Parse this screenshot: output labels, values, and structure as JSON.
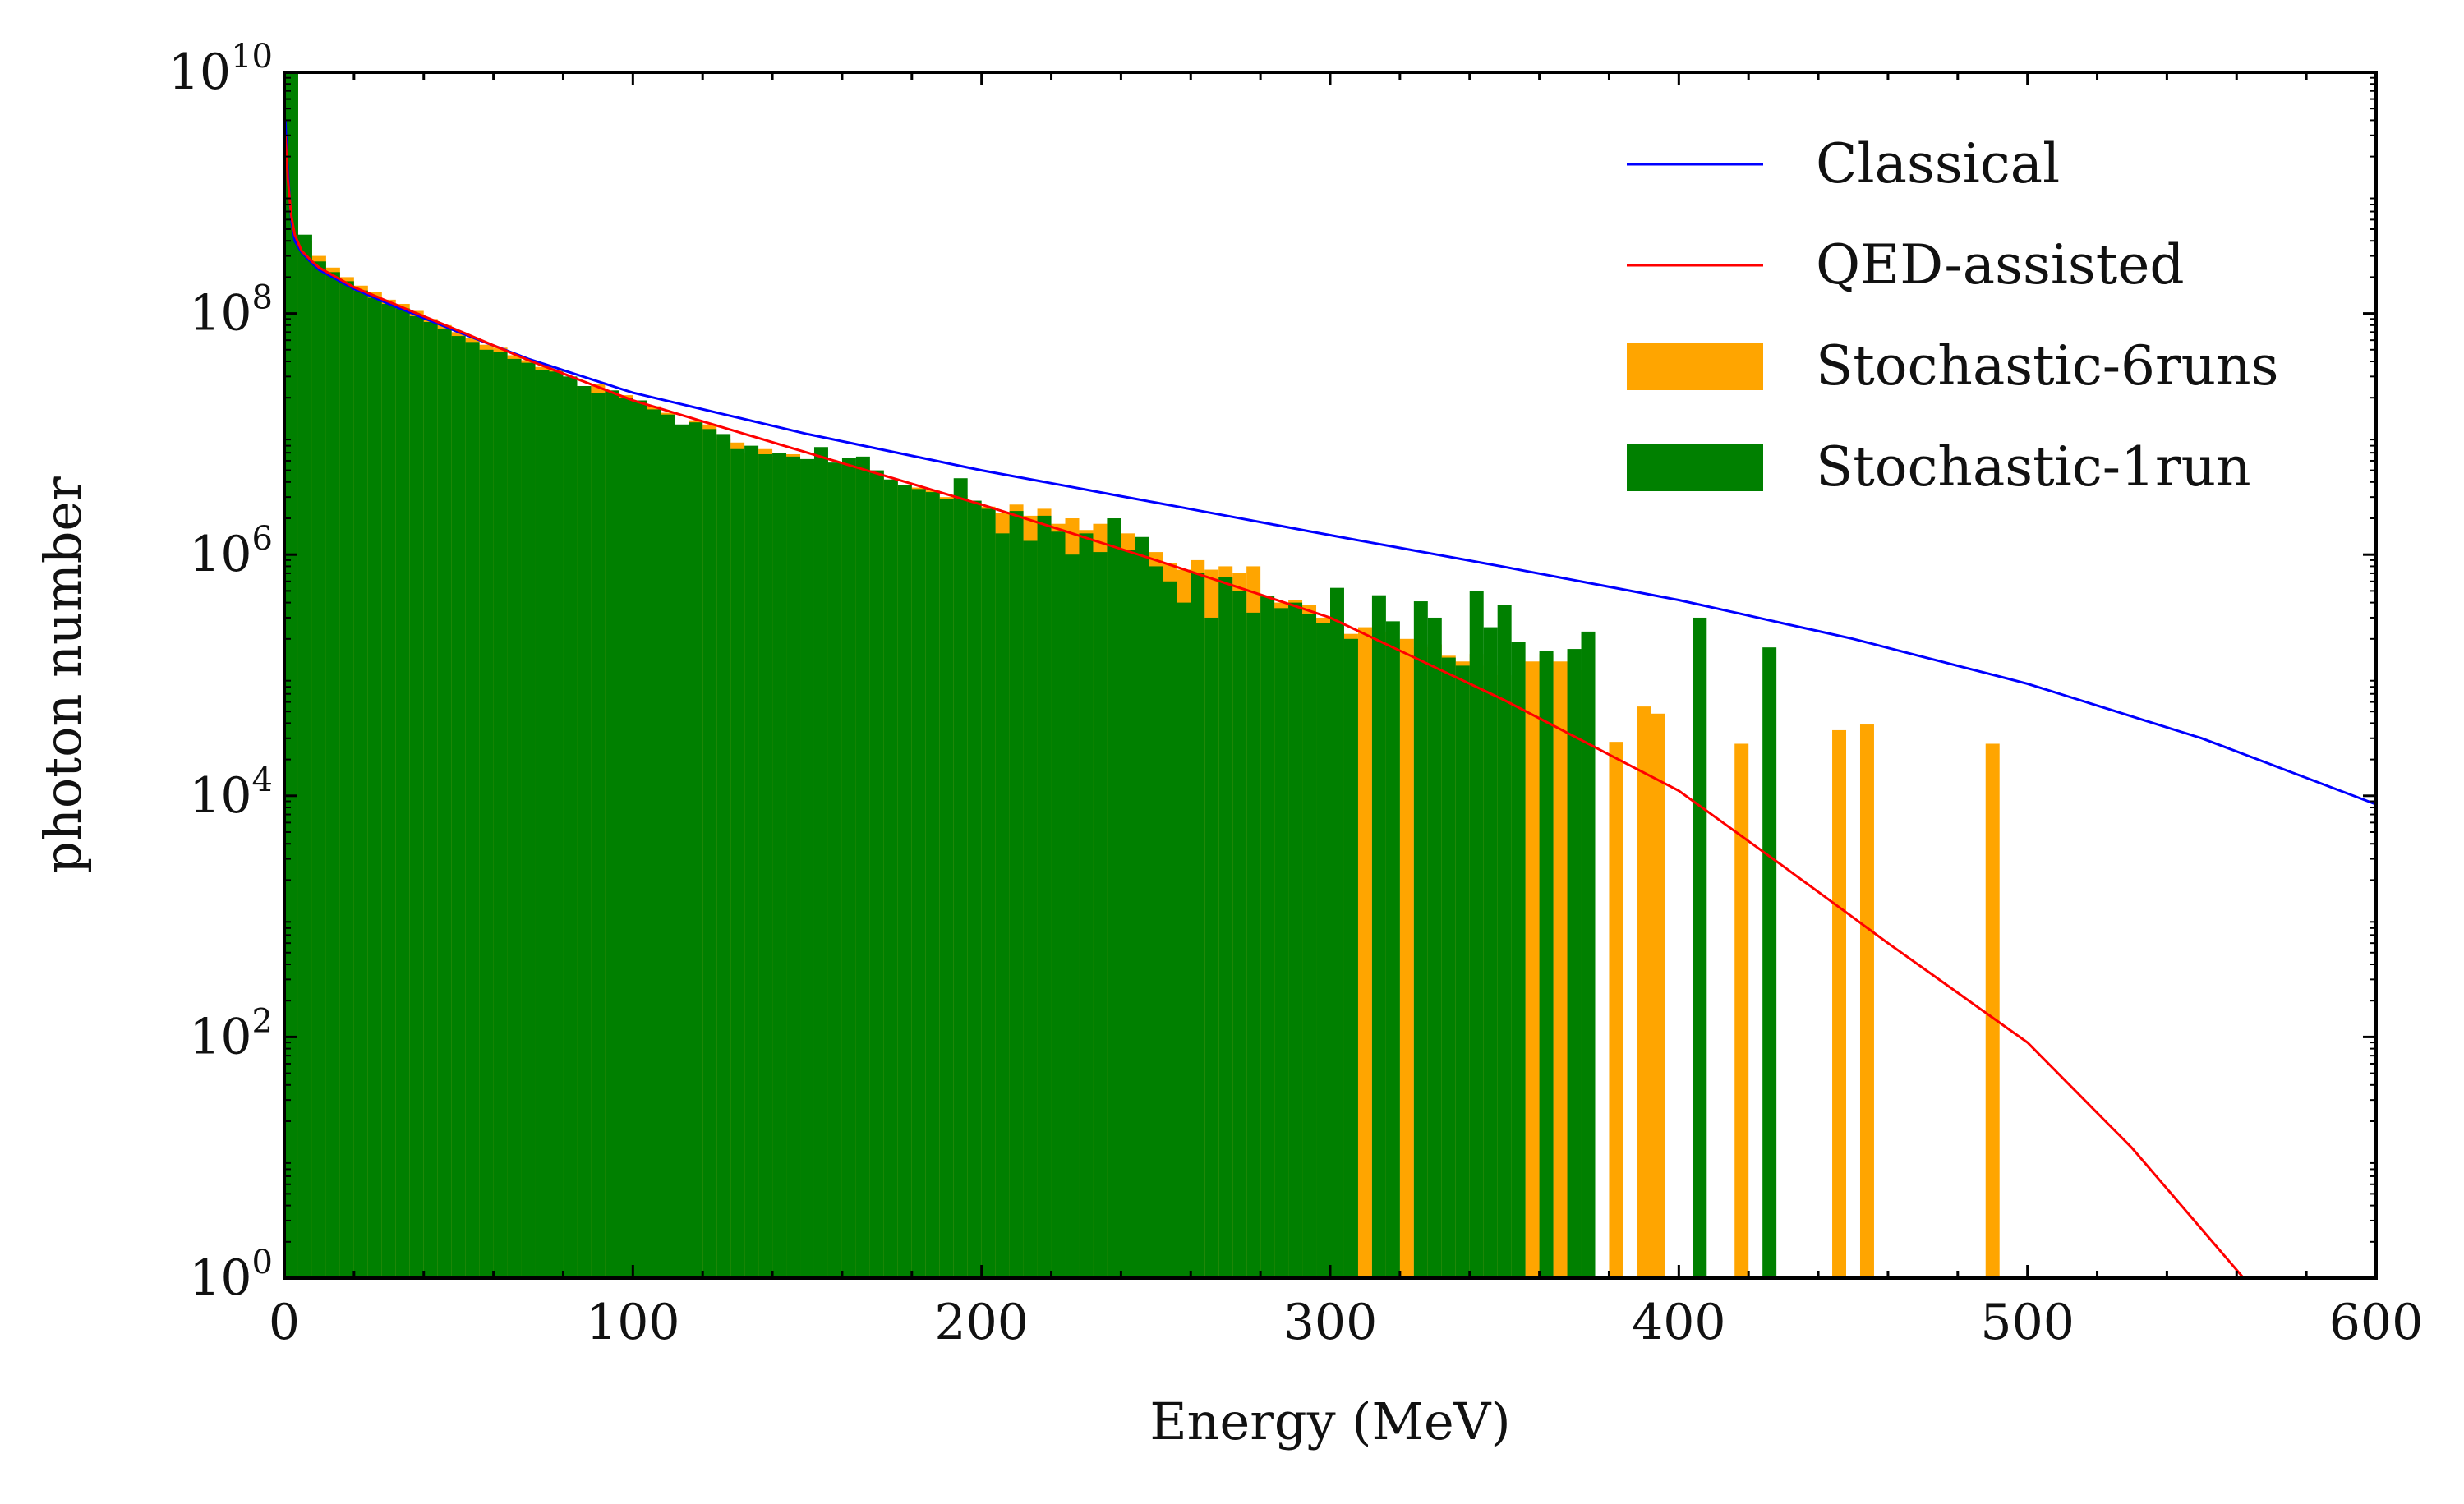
{
  "chart_data": {
    "type": "bar",
    "xlabel": "Energy (MeV)",
    "ylabel": "photon number",
    "xlim": [
      0,
      600
    ],
    "ylim": [
      1,
      10000000000
    ],
    "yscale": "log",
    "legend_position": "top-right",
    "x_ticks": [
      0,
      100,
      200,
      300,
      400,
      500,
      600
    ],
    "x_tick_labels": [
      "0",
      "100",
      "200",
      "300",
      "400",
      "500",
      "600"
    ],
    "y_ticks": [
      {
        "value": 1,
        "base": "10",
        "exp": "0"
      },
      {
        "value": 100,
        "base": "10",
        "exp": "2"
      },
      {
        "value": 10000,
        "base": "10",
        "exp": "4"
      },
      {
        "value": 1000000,
        "base": "10",
        "exp": "6"
      },
      {
        "value": 100000000,
        "base": "10",
        "exp": "8"
      },
      {
        "value": 10000000000,
        "base": "10",
        "exp": "10"
      }
    ],
    "bin_width": 4,
    "series": [
      {
        "name": "Classical",
        "kind": "line",
        "color": "#0000ff",
        "points": [
          [
            0.3,
            4000000000.0
          ],
          [
            1,
            1500000000.0
          ],
          [
            2,
            600000000.0
          ],
          [
            3,
            400000000.0
          ],
          [
            5,
            320000000.0
          ],
          [
            8,
            260000000.0
          ],
          [
            10,
            230000000.0
          ],
          [
            20,
            160000000.0
          ],
          [
            30,
            120000000.0
          ],
          [
            50,
            70000000.0
          ],
          [
            70,
            42000000.0
          ],
          [
            100,
            22000000.0
          ],
          [
            150,
            10000000.0
          ],
          [
            200,
            5000000.0
          ],
          [
            250,
            2700000.0
          ],
          [
            300,
            1450000.0
          ],
          [
            350,
            790000.0
          ],
          [
            400,
            420000.0
          ],
          [
            450,
            200000.0
          ],
          [
            500,
            85000.0
          ],
          [
            550,
            30000.0
          ],
          [
            600,
            8500.0
          ]
        ]
      },
      {
        "name": "QED-assisted",
        "kind": "line",
        "color": "#ff0000",
        "points": [
          [
            0.3,
            3000000000.0
          ],
          [
            1,
            1300000000.0
          ],
          [
            2,
            650000000.0
          ],
          [
            3,
            450000000.0
          ],
          [
            5,
            330000000.0
          ],
          [
            8,
            270000000.0
          ],
          [
            10,
            240000000.0
          ],
          [
            20,
            165000000.0
          ],
          [
            30,
            125000000.0
          ],
          [
            50,
            72000000.0
          ],
          [
            70,
            41000000.0
          ],
          [
            100,
            19000000.0
          ],
          [
            150,
            7000000.0
          ],
          [
            200,
            2600000.0
          ],
          [
            250,
            900000.0
          ],
          [
            300,
            300000.0
          ],
          [
            350,
            62000.0
          ],
          [
            400,
            11000.0
          ],
          [
            430,
            2600.0
          ],
          [
            460,
            600.0
          ],
          [
            500,
            90.0
          ],
          [
            530,
            12.0
          ],
          [
            562,
            1
          ]
        ]
      },
      {
        "name": "Stochastic-6runs",
        "kind": "bars",
        "color": "#ffa500",
        "points": [
          [
            0,
            10000000000.0
          ],
          [
            4,
            400000000.0
          ],
          [
            8,
            300000000.0
          ],
          [
            12,
            240000000.0
          ],
          [
            16,
            200000000.0
          ],
          [
            20,
            170000000.0
          ],
          [
            24,
            150000000.0
          ],
          [
            28,
            130000000.0
          ],
          [
            32,
            120000000.0
          ],
          [
            36,
            105000000.0
          ],
          [
            40,
            90000000.0
          ],
          [
            44,
            80000000.0
          ],
          [
            48,
            70000000.0
          ],
          [
            52,
            63000000.0
          ],
          [
            56,
            55000000.0
          ],
          [
            60,
            52000000.0
          ],
          [
            64,
            45000000.0
          ],
          [
            68,
            41000000.0
          ],
          [
            72,
            36000000.0
          ],
          [
            76,
            34000000.0
          ],
          [
            80,
            27000000.0
          ],
          [
            84,
            24000000.0
          ],
          [
            88,
            26000000.0
          ],
          [
            92,
            22000000.0
          ],
          [
            96,
            21000000.0
          ],
          [
            100,
            18000000.0
          ],
          [
            104,
            17000000.0
          ],
          [
            108,
            15000000.0
          ],
          [
            112,
            11000000.0
          ],
          [
            116,
            13000000.0
          ],
          [
            120,
            12000000.0
          ],
          [
            124,
            9000000.0
          ],
          [
            128,
            8500000.0
          ],
          [
            132,
            7000000.0
          ],
          [
            136,
            7500000.0
          ],
          [
            140,
            6500000.0
          ],
          [
            144,
            6800000.0
          ],
          [
            148,
            5800000.0
          ],
          [
            152,
            6200000.0
          ],
          [
            156,
            5200000.0
          ],
          [
            160,
            5500000.0
          ],
          [
            164,
            4600000.0
          ],
          [
            168,
            4300000.0
          ],
          [
            172,
            4000000.0
          ],
          [
            176,
            3800000.0
          ],
          [
            180,
            3600000.0
          ],
          [
            184,
            3400000.0
          ],
          [
            188,
            3000000.0
          ],
          [
            192,
            3100000.0
          ],
          [
            196,
            2700000.0
          ],
          [
            200,
            2500000.0
          ],
          [
            204,
            2200000.0
          ],
          [
            208,
            2600000.0
          ],
          [
            212,
            2100000.0
          ],
          [
            216,
            2400000.0
          ],
          [
            220,
            1800000.0
          ],
          [
            224,
            2000000.0
          ],
          [
            228,
            1600000.0
          ],
          [
            232,
            1800000.0
          ],
          [
            236,
            1400000.0
          ],
          [
            240,
            1500000.0
          ],
          [
            244,
            1200000.0
          ],
          [
            248,
            1050000.0
          ],
          [
            252,
            850000.0
          ],
          [
            256,
            750000.0
          ],
          [
            260,
            900000.0
          ],
          [
            264,
            750000.0
          ],
          [
            268,
            800000.0
          ],
          [
            272,
            700000.0
          ],
          [
            276,
            800000.0
          ],
          [
            280,
            450000.0
          ],
          [
            284,
            400000.0
          ],
          [
            288,
            420000.0
          ],
          [
            292,
            380000.0
          ],
          [
            296,
            300000.0
          ],
          [
            300,
            250000.0
          ],
          [
            304,
            220000.0
          ],
          [
            308,
            250000.0
          ],
          [
            312,
            230000.0
          ],
          [
            316,
            190000.0
          ],
          [
            320,
            200000.0
          ],
          [
            324,
            170000.0
          ],
          [
            328,
            180000.0
          ],
          [
            332,
            145000.0
          ],
          [
            336,
            130000.0
          ],
          [
            340,
            150000.0
          ],
          [
            344,
            120000.0
          ],
          [
            348,
            100000.0
          ],
          [
            352,
            55000.0
          ],
          [
            356,
            130000.0
          ],
          [
            360,
            150000.0
          ],
          [
            364,
            130000.0
          ],
          [
            368,
            150000.0
          ],
          [
            372,
            110000.0
          ],
          [
            380,
            28000.0
          ],
          [
            388,
            55000.0
          ],
          [
            392,
            48000.0
          ],
          [
            416,
            27000.0
          ],
          [
            444,
            35000.0
          ],
          [
            452,
            39000.0
          ],
          [
            488,
            27000.0
          ]
        ]
      },
      {
        "name": "Stochastic-1run",
        "kind": "bars",
        "color": "#008000",
        "points": [
          [
            0,
            10000000000.0
          ],
          [
            4,
            450000000.0
          ],
          [
            8,
            270000000.0
          ],
          [
            12,
            220000000.0
          ],
          [
            16,
            185000000.0
          ],
          [
            20,
            155000000.0
          ],
          [
            24,
            135000000.0
          ],
          [
            28,
            120000000.0
          ],
          [
            32,
            110000000.0
          ],
          [
            36,
            95000000.0
          ],
          [
            40,
            85000000.0
          ],
          [
            44,
            75000000.0
          ],
          [
            48,
            65000000.0
          ],
          [
            52,
            58000000.0
          ],
          [
            56,
            50000000.0
          ],
          [
            60,
            48000000.0
          ],
          [
            64,
            42000000.0
          ],
          [
            68,
            39000000.0
          ],
          [
            72,
            34000000.0
          ],
          [
            76,
            33000000.0
          ],
          [
            80,
            30000000.0
          ],
          [
            84,
            25000000.0
          ],
          [
            88,
            22000000.0
          ],
          [
            92,
            23000000.0
          ],
          [
            96,
            20000000.0
          ],
          [
            100,
            19000000.0
          ],
          [
            104,
            16000000.0
          ],
          [
            108,
            14500000.0
          ],
          [
            112,
            12000000.0
          ],
          [
            116,
            12500000.0
          ],
          [
            120,
            11000000.0
          ],
          [
            124,
            10000000.0
          ],
          [
            128,
            7500000.0
          ],
          [
            132,
            8000000.0
          ],
          [
            136,
            6800000.0
          ],
          [
            140,
            7000000.0
          ],
          [
            144,
            6500000.0
          ],
          [
            148,
            6200000.0
          ],
          [
            152,
            7800000.0
          ],
          [
            156,
            5800000.0
          ],
          [
            160,
            6300000.0
          ],
          [
            164,
            6500000.0
          ],
          [
            168,
            5000000.0
          ],
          [
            172,
            4200000.0
          ],
          [
            176,
            3800000.0
          ],
          [
            180,
            3500000.0
          ],
          [
            184,
            3300000.0
          ],
          [
            188,
            2900000.0
          ],
          [
            192,
            4300000.0
          ],
          [
            196,
            2800000.0
          ],
          [
            200,
            2400000.0
          ],
          [
            204,
            1500000.0
          ],
          [
            208,
            2300000.0
          ],
          [
            212,
            1300000.0
          ],
          [
            216,
            2100000.0
          ],
          [
            220,
            1550000.0
          ],
          [
            224,
            1000000.0
          ],
          [
            228,
            1500000.0
          ],
          [
            232,
            1050000.0
          ],
          [
            236,
            2000000.0
          ],
          [
            240,
            1100000.0
          ],
          [
            244,
            1400000.0
          ],
          [
            248,
            800000.0
          ],
          [
            252,
            600000.0
          ],
          [
            256,
            400000.0
          ],
          [
            260,
            700000.0
          ],
          [
            264,
            300000.0
          ],
          [
            268,
            650000.0
          ],
          [
            272,
            500000.0
          ],
          [
            276,
            330000.0
          ],
          [
            280,
            450000.0
          ],
          [
            284,
            360000.0
          ],
          [
            288,
            400000.0
          ],
          [
            292,
            320000.0
          ],
          [
            296,
            270000.0
          ],
          [
            300,
            530000.0
          ],
          [
            304,
            200000.0
          ],
          [
            308,
            1.0
          ],
          [
            312,
            460000.0
          ],
          [
            316,
            280000.0
          ],
          [
            320,
            1.0
          ],
          [
            324,
            410000.0
          ],
          [
            328,
            300000.0
          ],
          [
            332,
            140000.0
          ],
          [
            336,
            120000.0
          ],
          [
            340,
            500000.0
          ],
          [
            344,
            250000.0
          ],
          [
            348,
            380000.0
          ],
          [
            352,
            190000.0
          ],
          [
            356,
            1.0
          ],
          [
            360,
            160000.0
          ],
          [
            364,
            1.0
          ],
          [
            368,
            165000.0
          ],
          [
            372,
            230000.0
          ],
          [
            376,
            1.0
          ],
          [
            404,
            300000.0
          ],
          [
            424,
            170000.0
          ]
        ]
      }
    ]
  }
}
